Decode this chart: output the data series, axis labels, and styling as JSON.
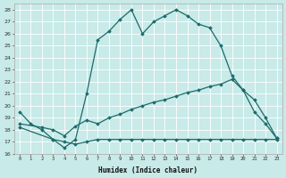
{
  "xlabel": "Humidex (Indice chaleur)",
  "background_color": "#c8eae8",
  "grid_color": "#b0d8d5",
  "line_color": "#1a6b6b",
  "xlim": [
    -0.5,
    23.5
  ],
  "ylim": [
    16,
    28.5
  ],
  "yticks": [
    16,
    17,
    18,
    19,
    20,
    21,
    22,
    23,
    24,
    25,
    26,
    27,
    28
  ],
  "xticks": [
    0,
    1,
    2,
    3,
    4,
    5,
    6,
    7,
    8,
    9,
    10,
    11,
    12,
    13,
    14,
    15,
    16,
    17,
    18,
    19,
    20,
    21,
    22,
    23
  ],
  "curve1_x": [
    0,
    1,
    2,
    3,
    4,
    5,
    6,
    7,
    8,
    9,
    10,
    11,
    12,
    13,
    14,
    15,
    16,
    17,
    18,
    19,
    20,
    21,
    22,
    23
  ],
  "curve1_y": [
    19.5,
    18.5,
    18.0,
    17.2,
    16.5,
    17.2,
    21.0,
    25.5,
    26.2,
    27.2,
    28.0,
    26.0,
    27.0,
    27.5,
    28.0,
    27.5,
    26.8,
    26.5,
    25.0,
    22.5,
    21.3,
    19.5,
    18.5,
    17.3
  ],
  "curve2_x": [
    0,
    2,
    3,
    4,
    5,
    6,
    7,
    8,
    9,
    10,
    11,
    12,
    13,
    14,
    15,
    16,
    17,
    18,
    19,
    20,
    21,
    22,
    23
  ],
  "curve2_y": [
    18.5,
    18.2,
    18.0,
    17.5,
    18.3,
    18.8,
    18.5,
    19.0,
    19.3,
    19.7,
    20.0,
    20.3,
    20.5,
    20.8,
    21.1,
    21.3,
    21.6,
    21.8,
    22.2,
    21.3,
    20.5,
    19.0,
    17.3
  ],
  "curve3_x": [
    0,
    3,
    4,
    5,
    6,
    7,
    8,
    9,
    10,
    11,
    12,
    13,
    14,
    15,
    16,
    17,
    18,
    19,
    20,
    21,
    22,
    23
  ],
  "curve3_y": [
    18.2,
    17.2,
    17.0,
    16.8,
    17.0,
    17.2,
    17.2,
    17.2,
    17.2,
    17.2,
    17.2,
    17.2,
    17.2,
    17.2,
    17.2,
    17.2,
    17.2,
    17.2,
    17.2,
    17.2,
    17.2,
    17.2
  ]
}
